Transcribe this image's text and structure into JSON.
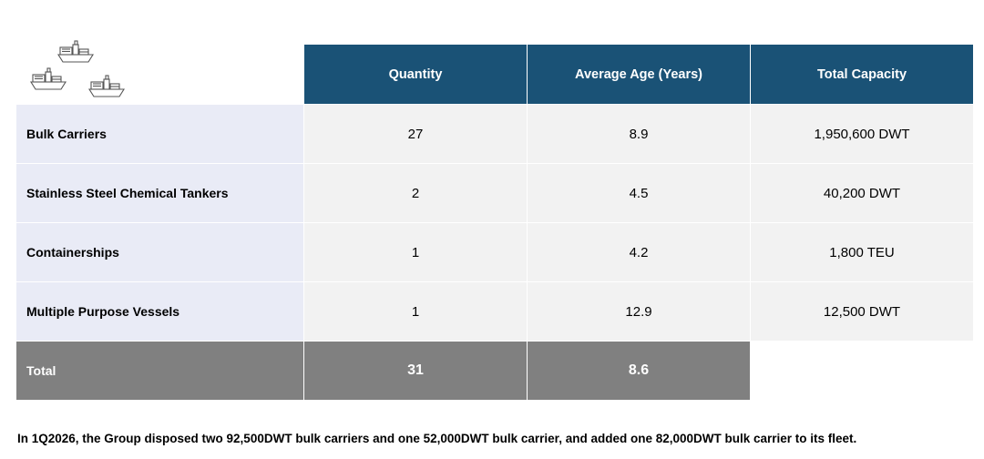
{
  "header": {
    "icon": "cargo-ships-icon",
    "columns": [
      "Quantity",
      "Average Age (Years)",
      "Total Capacity"
    ]
  },
  "rows": [
    {
      "name": "Bulk Carriers",
      "quantity": "27",
      "age": "8.9",
      "capacity": "1,950,600 DWT"
    },
    {
      "name": "Stainless Steel Chemical Tankers",
      "quantity": "2",
      "age": "4.5",
      "capacity": "40,200 DWT"
    },
    {
      "name": "Containerships",
      "quantity": "1",
      "age": "4.2",
      "capacity": "1,800 TEU"
    },
    {
      "name": "Multiple Purpose Vessels",
      "quantity": "1",
      "age": "12.9",
      "capacity": "12,500 DWT"
    }
  ],
  "total": {
    "label": "Total",
    "quantity": "31",
    "age": "8.6"
  },
  "note": "In 1Q2026, the Group disposed two 92,500DWT bulk carriers and one 52,000DWT bulk carrier, and added one 82,000DWT bulk carrier to its fleet.",
  "colors": {
    "header_bg": "#1a5276",
    "label_bg": "#e9ebf6",
    "value_bg": "#f2f2f2",
    "total_bg": "#808080"
  }
}
